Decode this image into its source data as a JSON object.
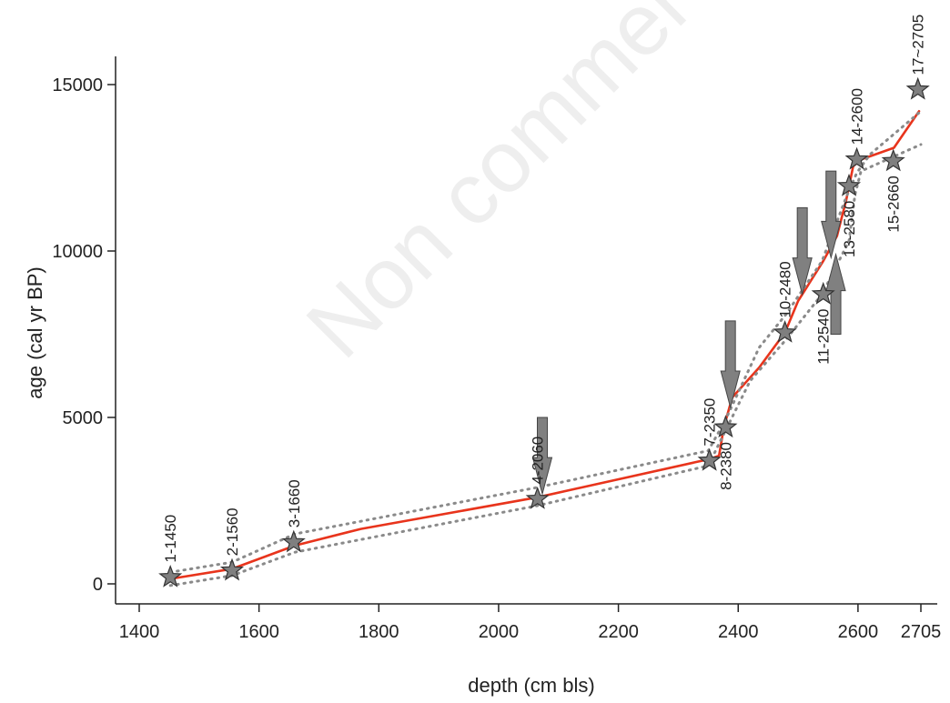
{
  "chart_data": {
    "type": "line",
    "xlabel": "depth (cm bls)",
    "ylabel": "age (cal yr BP)",
    "xlim": [
      1400,
      2705
    ],
    "ylim": [
      0,
      15000
    ],
    "x_ticks": [
      "1400",
      "1600",
      "1800",
      "2000",
      "2200",
      "2400",
      "2600",
      "2705"
    ],
    "x_tick_values": [
      1400,
      1600,
      1800,
      2000,
      2200,
      2400,
      2600,
      2705
    ],
    "y_ticks": [
      "0",
      "5000",
      "10000",
      "15000"
    ],
    "y_tick_values": [
      0,
      5000,
      10000,
      15000
    ],
    "grid": false,
    "watermark": "Non commercial",
    "colors": {
      "model": "#e8341c",
      "bounds": "#8a8a8a",
      "star": "#7f7f7f",
      "arrow": "#808080",
      "axis": "#222222"
    },
    "samples": [
      {
        "label": "1-1450",
        "x": 1452,
        "y": 200,
        "label_pos": "above"
      },
      {
        "label": "2-1560",
        "x": 1555,
        "y": 400,
        "label_pos": "above"
      },
      {
        "label": "3-1660",
        "x": 1658,
        "y": 1250,
        "label_pos": "above"
      },
      {
        "label": "4-2060",
        "x": 2065,
        "y": 2550,
        "label_pos": "above"
      },
      {
        "label": "7-2350",
        "x": 2352,
        "y": 3700,
        "label_pos": "above"
      },
      {
        "label": "8-2380",
        "x": 2379,
        "y": 4700,
        "label_pos": "below"
      },
      {
        "label": "10-2480",
        "x": 2478,
        "y": 7550,
        "label_pos": "above"
      },
      {
        "label": "11-2540",
        "x": 2542,
        "y": 8700,
        "label_pos": "below"
      },
      {
        "label": "13-2580",
        "x": 2585,
        "y": 11950,
        "label_pos": "below"
      },
      {
        "label": "14-2600",
        "x": 2598,
        "y": 12750,
        "label_pos": "above"
      },
      {
        "label": "15-2660",
        "x": 2659,
        "y": 12700,
        "label_pos": "below"
      },
      {
        "label": "17~2705",
        "x": 2700,
        "y": 14850,
        "label_pos": "above"
      }
    ],
    "series": [
      {
        "role": "age-depth model",
        "style": "solid",
        "points": [
          [
            1452,
            150
          ],
          [
            1555,
            450
          ],
          [
            1660,
            1150
          ],
          [
            1770,
            1650
          ],
          [
            2065,
            2600
          ],
          [
            2352,
            3750
          ],
          [
            2368,
            3850
          ],
          [
            2376,
            4700
          ],
          [
            2390,
            5600
          ],
          [
            2435,
            6500
          ],
          [
            2478,
            7550
          ],
          [
            2500,
            8500
          ],
          [
            2542,
            9700
          ],
          [
            2565,
            10450
          ],
          [
            2580,
            11500
          ],
          [
            2592,
            12550
          ],
          [
            2605,
            12750
          ],
          [
            2660,
            13100
          ],
          [
            2702,
            14200
          ]
        ]
      },
      {
        "role": "upper bound",
        "style": "dotted",
        "points": [
          [
            1452,
            350
          ],
          [
            1555,
            650
          ],
          [
            1660,
            1500
          ],
          [
            2065,
            2900
          ],
          [
            2350,
            4000
          ],
          [
            2378,
            4900
          ],
          [
            2435,
            7100
          ],
          [
            2480,
            8100
          ],
          [
            2540,
            9700
          ],
          [
            2580,
            11600
          ],
          [
            2598,
            12350
          ],
          [
            2620,
            12900
          ],
          [
            2705,
            14200
          ]
        ]
      },
      {
        "role": "lower bound",
        "style": "dotted",
        "points": [
          [
            1452,
            -50
          ],
          [
            1555,
            250
          ],
          [
            1660,
            950
          ],
          [
            2065,
            2350
          ],
          [
            2350,
            3550
          ],
          [
            2376,
            4500
          ],
          [
            2420,
            6100
          ],
          [
            2478,
            7300
          ],
          [
            2540,
            8700
          ],
          [
            2585,
            10300
          ],
          [
            2595,
            11700
          ],
          [
            2605,
            12400
          ],
          [
            2705,
            13200
          ]
        ]
      }
    ],
    "arrows": [
      {
        "x": 2073,
        "y_top": 5000,
        "y_tip": 2700,
        "direction": "down"
      },
      {
        "x": 2387,
        "y_top": 7900,
        "y_tip": 5300,
        "direction": "down"
      },
      {
        "x": 2507,
        "y_top": 11300,
        "y_tip": 8700,
        "direction": "down"
      },
      {
        "x": 2555,
        "y_top": 12400,
        "y_tip": 9800,
        "direction": "down"
      },
      {
        "x": 2563,
        "y_top": 7500,
        "y_tip": 9900,
        "direction": "up"
      }
    ]
  }
}
